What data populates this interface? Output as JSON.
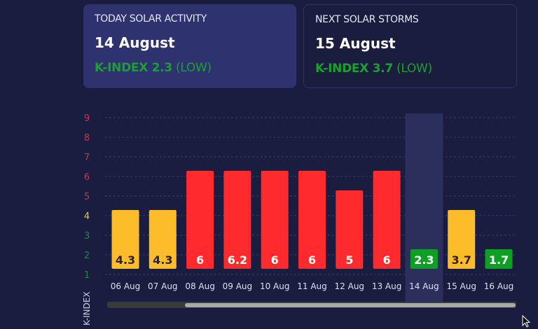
{
  "cards": [
    {
      "label": "TODAY SOLAR ACTIVITY",
      "date": "14 August",
      "kindex": "K-INDEX 2.3",
      "level": "(LOW)"
    },
    {
      "label": "NEXT SOLAR STORMS",
      "date": "15 August",
      "kindex": "K-INDEX 3.7",
      "level": "(LOW)"
    }
  ],
  "colors": {
    "high": "#ff2a2e",
    "medium": "#fdbd2b",
    "low": "#0da024",
    "highlight": "#2c2f5c"
  },
  "chart_data": {
    "type": "bar",
    "title": "",
    "xlabel": "",
    "ylabel": "K-INDEX",
    "ylim": [
      1,
      9
    ],
    "yticks": [
      "1",
      "2",
      "3",
      "4",
      "5",
      "6",
      "7",
      "8",
      "9"
    ],
    "categories": [
      "06 Aug",
      "07 Aug",
      "08 Aug",
      "09 Aug",
      "10 Aug",
      "11 Aug",
      "12 Aug",
      "13 Aug",
      "14 Aug",
      "15 Aug",
      "16 Aug"
    ],
    "values": [
      4.3,
      4.3,
      6,
      6.2,
      6,
      6,
      5,
      6,
      2.3,
      3.7,
      1.7
    ],
    "labels": [
      "4.3",
      "4.3",
      "6",
      "6.2",
      "6",
      "6",
      "5",
      "6",
      "2.3",
      "3.7",
      "1.7"
    ],
    "highlighted": "14 Aug",
    "grid": true
  }
}
